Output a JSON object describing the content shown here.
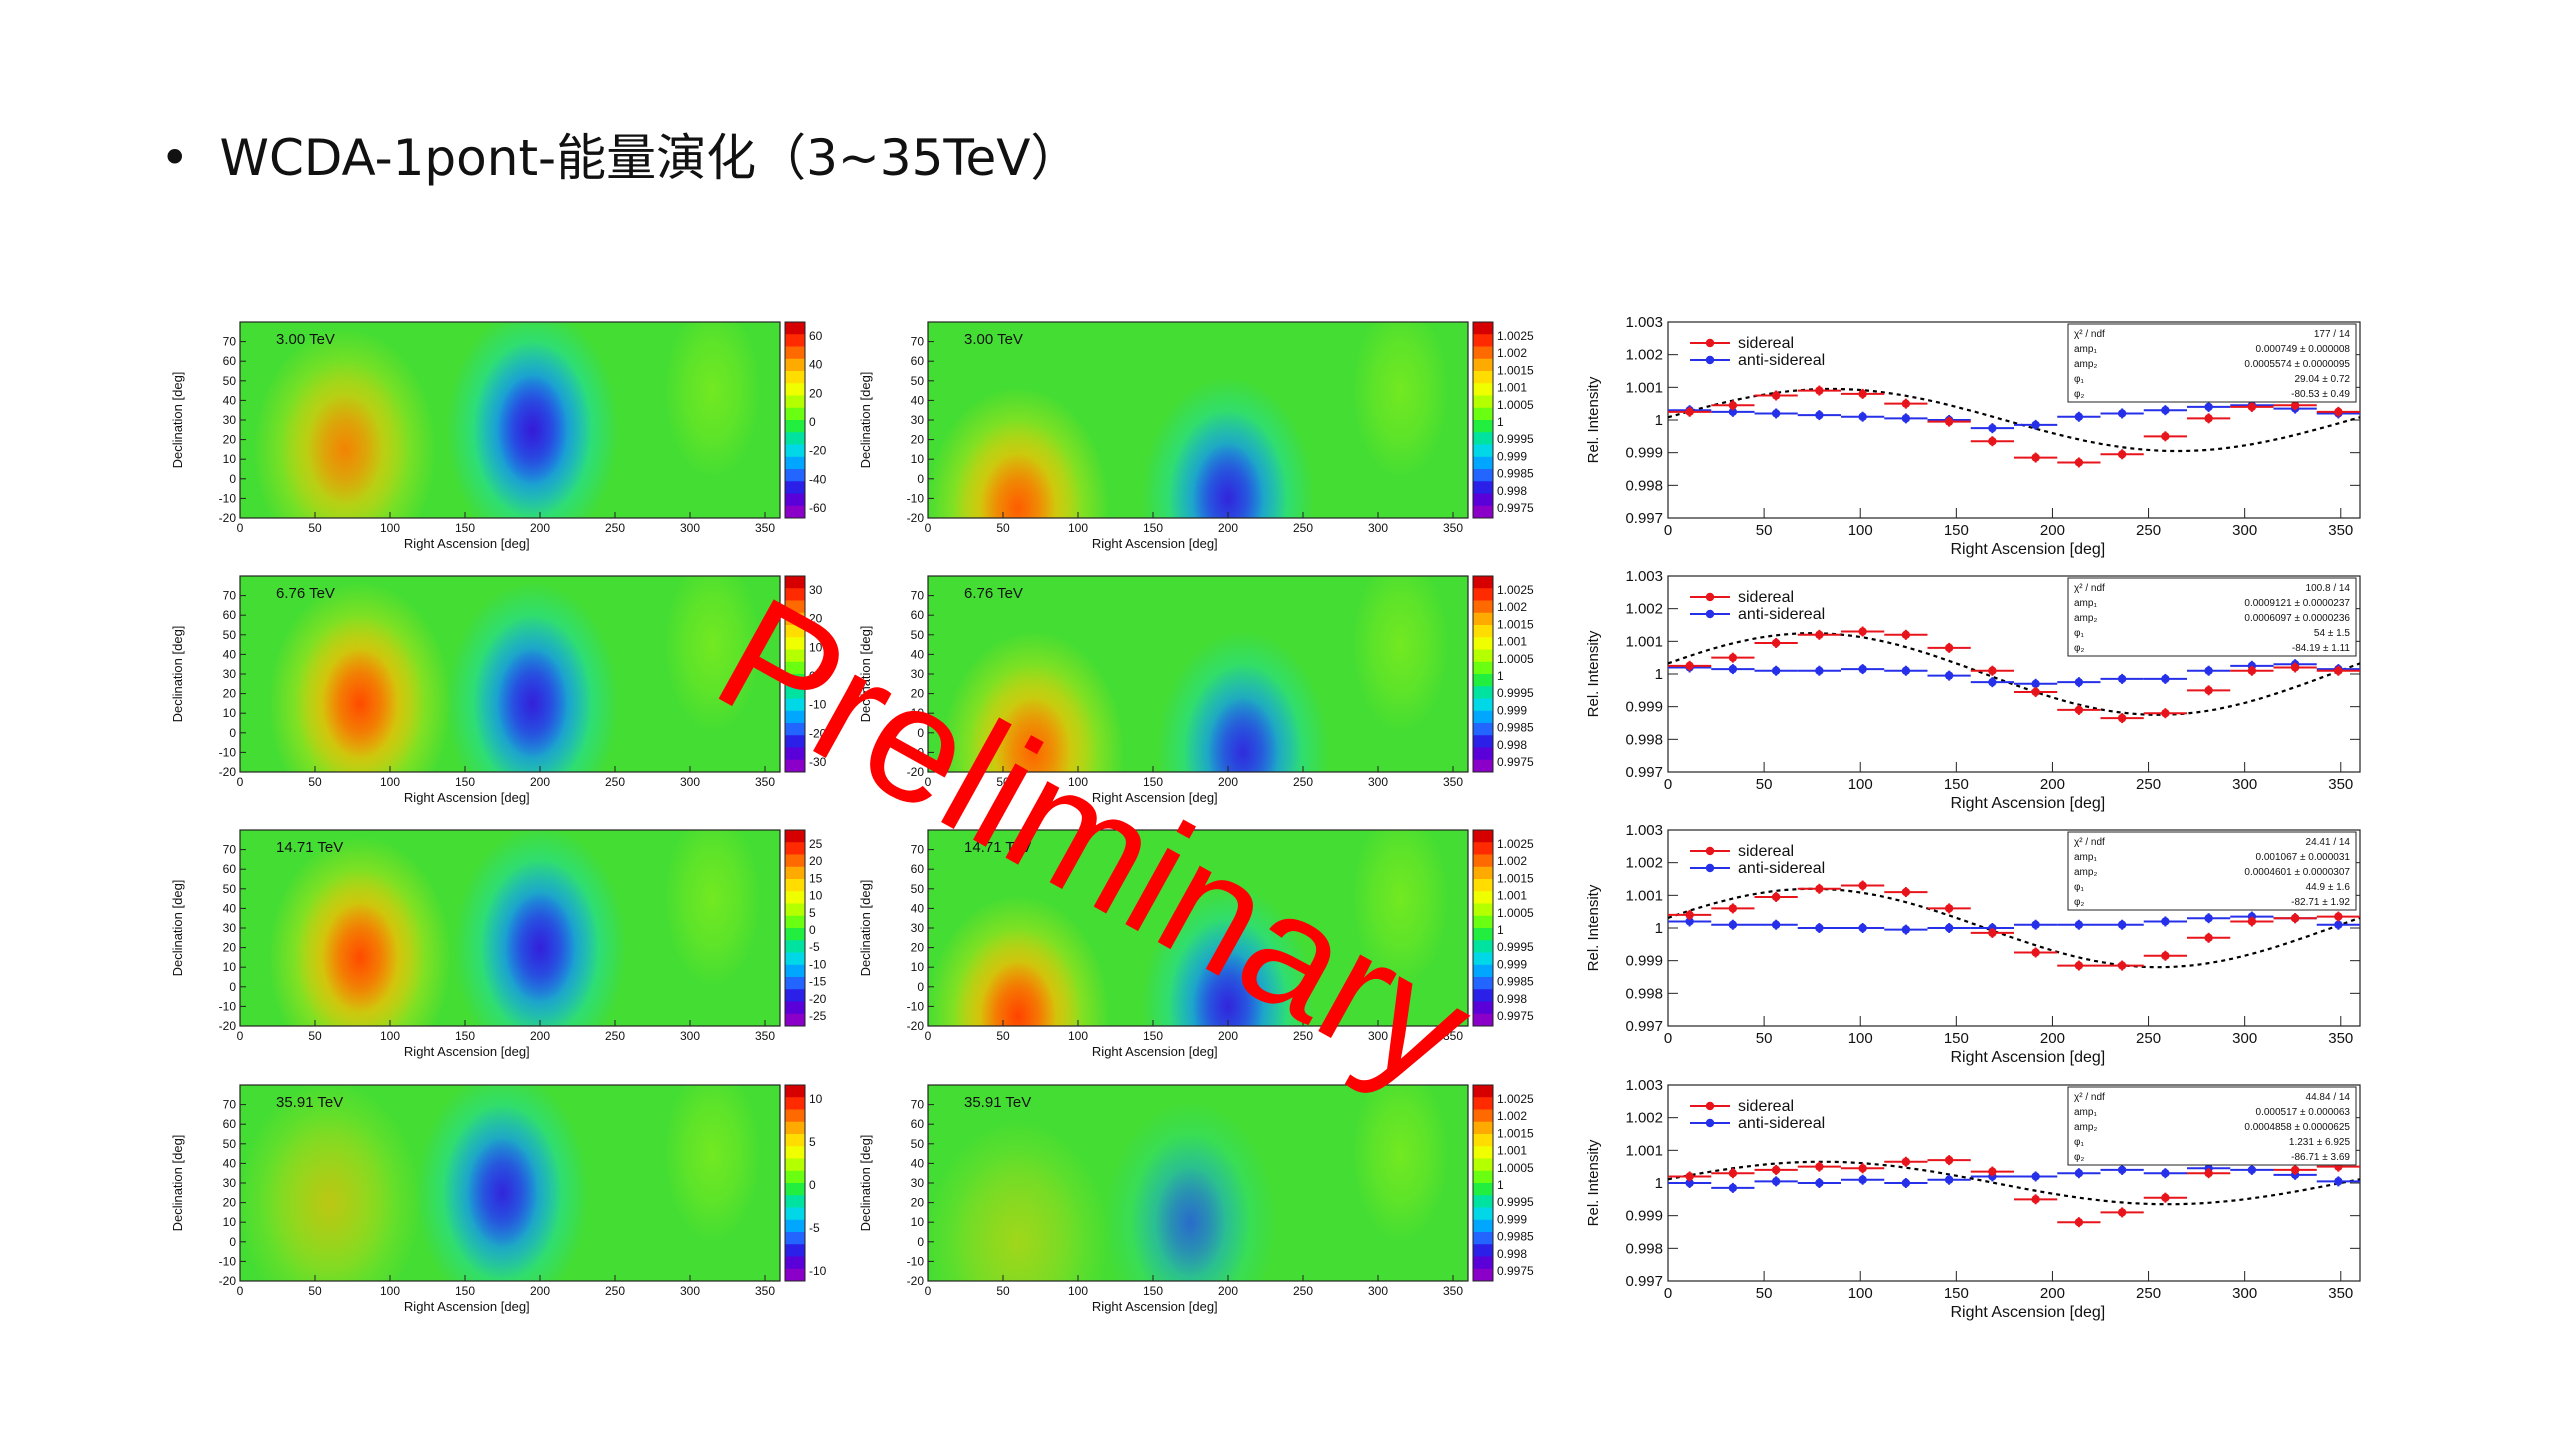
{
  "slide": {
    "bullet": "•",
    "title": "WCDA-1pont-能量演化（3~35TeV）"
  },
  "watermark": "Preliminary",
  "chart_data": {
    "type": "heatmap",
    "rows": [
      {
        "energy_label": "3.00 TeV",
        "rel_map": {
          "z_ticks": [
            "60",
            "40",
            "20",
            "0",
            "-20",
            "-40",
            "-60"
          ],
          "hot_strength": 0.55,
          "cold_strength": 1.0,
          "hot_ra": 70,
          "hot_dec": 15,
          "cold_ra": 195,
          "cold_dec": 25
        },
        "abs_map": {
          "z_ticks": [
            "1.0025",
            "1.002",
            "1.0015",
            "1.001",
            "1.0005",
            "1",
            "0.9995",
            "0.999",
            "0.9985",
            "0.998",
            "0.9975"
          ],
          "hot_strength": 0.75,
          "cold_strength": 0.9,
          "hot_ra": 60,
          "hot_dec": -15,
          "cold_ra": 200,
          "cold_dec": -10
        },
        "profile": {
          "stats": [
            [
              "χ² / ndf",
              "177 / 14"
            ],
            [
              "amp₁",
              "0.000749 ± 0.000008"
            ],
            [
              "amp₂",
              "0.0005574 ± 0.0000095"
            ],
            [
              "φ₁",
              "29.04 ± 0.72"
            ],
            [
              "φ₂",
              "-80.53 ± 0.49"
            ]
          ],
          "sidereal": [
            1.00025,
            1.00045,
            1.00075,
            1.0009,
            1.0008,
            1.0005,
            0.99995,
            0.99935,
            0.99885,
            0.9987,
            0.99895,
            0.9995,
            1.00005,
            1.0004,
            1.00045,
            1.00025
          ],
          "anti": [
            1.0003,
            1.00025,
            1.0002,
            1.00015,
            1.0001,
            1.00005,
            1.0,
            0.99975,
            0.99985,
            1.0001,
            1.0002,
            1.0003,
            1.0004,
            1.00045,
            1.00035,
            1.0002
          ],
          "fit_amp": 0.00095,
          "fit_phase": 85
        }
      },
      {
        "energy_label": "6.76 TeV",
        "rel_map": {
          "z_ticks": [
            "30",
            "20",
            "10",
            "0",
            "-10",
            "-20",
            "-30"
          ],
          "hot_strength": 0.85,
          "cold_strength": 0.95,
          "hot_ra": 80,
          "hot_dec": 15,
          "cold_ra": 195,
          "cold_dec": 15
        },
        "abs_map": {
          "z_ticks": [
            "1.0025",
            "1.002",
            "1.0015",
            "1.001",
            "1.0005",
            "1",
            "0.9995",
            "0.999",
            "0.9985",
            "0.998",
            "0.9975"
          ],
          "hot_strength": 0.7,
          "cold_strength": 0.85,
          "hot_ra": 70,
          "hot_dec": -10,
          "cold_ra": 210,
          "cold_dec": -10
        },
        "profile": {
          "stats": [
            [
              "χ² / ndf",
              "100.8 / 14"
            ],
            [
              "amp₁",
              "0.0009121 ± 0.0000237"
            ],
            [
              "amp₂",
              "0.0006097 ± 0.0000236"
            ],
            [
              "φ₁",
              "54 ± 1.5"
            ],
            [
              "φ₂",
              "-84.19 ± 1.11"
            ]
          ],
          "sidereal": [
            1.00025,
            1.0005,
            1.00095,
            1.0012,
            1.0013,
            1.0012,
            1.0008,
            1.0001,
            0.99945,
            0.9989,
            0.99865,
            0.9988,
            0.9995,
            1.0001,
            1.0002,
            1.0001
          ],
          "anti": [
            1.0002,
            1.00015,
            1.0001,
            1.0001,
            1.00015,
            1.0001,
            0.99995,
            0.99975,
            0.9997,
            0.99975,
            0.99985,
            0.99985,
            1.0001,
            1.00025,
            1.0003,
            1.00015
          ],
          "fit_amp": 0.00125,
          "fit_phase": 75
        }
      },
      {
        "energy_label": "14.71 TeV",
        "rel_map": {
          "z_ticks": [
            "25",
            "20",
            "15",
            "10",
            "5",
            "0",
            "-5",
            "-10",
            "-15",
            "-20",
            "-25"
          ],
          "hot_strength": 0.85,
          "cold_strength": 0.95,
          "hot_ra": 80,
          "hot_dec": 15,
          "cold_ra": 200,
          "cold_dec": 20
        },
        "abs_map": {
          "z_ticks": [
            "1.0025",
            "1.002",
            "1.0015",
            "1.001",
            "1.0005",
            "1",
            "0.9995",
            "0.999",
            "0.9985",
            "0.998",
            "0.9975"
          ],
          "hot_strength": 0.9,
          "cold_strength": 0.9,
          "hot_ra": 60,
          "hot_dec": -15,
          "cold_ra": 200,
          "cold_dec": -10
        },
        "profile": {
          "stats": [
            [
              "χ² / ndf",
              "24.41 / 14"
            ],
            [
              "amp₁",
              "0.001067 ± 0.000031"
            ],
            [
              "amp₂",
              "0.0004601 ± 0.0000307"
            ],
            [
              "φ₁",
              "44.9 ± 1.6"
            ],
            [
              "φ₂",
              "-82.71 ± 1.92"
            ]
          ],
          "sidereal": [
            1.0004,
            1.0006,
            1.00095,
            1.0012,
            1.0013,
            1.0011,
            1.0006,
            0.99985,
            0.99925,
            0.99885,
            0.99885,
            0.99915,
            0.9997,
            1.0002,
            1.0003,
            1.00035
          ],
          "anti": [
            1.0002,
            1.0001,
            1.0001,
            1.0,
            1.0,
            0.99995,
            1.0,
            1.0,
            1.0001,
            1.0001,
            1.0001,
            1.0002,
            1.0003,
            1.00035,
            1.0003,
            1.0001
          ],
          "fit_amp": 0.0012,
          "fit_phase": 75
        }
      },
      {
        "energy_label": "35.91 TeV",
        "rel_map": {
          "z_ticks": [
            "10",
            "5",
            "0",
            "-5",
            "-10"
          ],
          "hot_strength": 0.25,
          "cold_strength": 0.9,
          "hot_ra": 60,
          "hot_dec": 20,
          "cold_ra": 175,
          "cold_dec": 25
        },
        "abs_map": {
          "z_ticks": [
            "1.0025",
            "1.002",
            "1.0015",
            "1.001",
            "1.0005",
            "1",
            "0.9995",
            "0.999",
            "0.9985",
            "0.998",
            "0.9975"
          ],
          "hot_strength": 0.15,
          "cold_strength": 0.5,
          "hot_ra": 60,
          "hot_dec": 0,
          "cold_ra": 175,
          "cold_dec": 10
        },
        "profile": {
          "stats": [
            [
              "χ² / ndf",
              "44.84 / 14"
            ],
            [
              "amp₁",
              "0.000517 ± 0.000063"
            ],
            [
              "amp₂",
              "0.0004858 ± 0.0000625"
            ],
            [
              "φ₁",
              "1.231 ± 6.925"
            ],
            [
              "φ₂",
              "-86.71 ± 3.69"
            ]
          ],
          "sidereal": [
            1.0002,
            1.0003,
            1.0004,
            1.0005,
            1.00045,
            1.00065,
            1.0007,
            1.00035,
            0.9995,
            0.9988,
            0.9991,
            0.99955,
            1.0003,
            1.0007,
            1.0004,
            1.0005
          ],
          "anti": [
            1.0,
            0.99985,
            1.00005,
            1.0,
            1.0001,
            1.0,
            1.0001,
            1.0002,
            1.0002,
            1.0003,
            1.0004,
            1.0003,
            1.00045,
            1.0004,
            1.00025,
            1.00005
          ],
          "fit_amp": 0.00065,
          "fit_phase": 80
        }
      }
    ],
    "map_axes": {
      "xlabel": "Right Ascension [deg]",
      "ylabel": "Declination [deg]",
      "x_ticks": [
        0,
        50,
        100,
        150,
        200,
        250,
        300,
        350
      ],
      "y_ticks": [
        -20,
        -10,
        0,
        10,
        20,
        30,
        40,
        50,
        60,
        70
      ],
      "xlim": [
        0,
        360
      ],
      "ylim": [
        -20,
        80
      ]
    },
    "profile_axes": {
      "xlabel": "Right Ascension [deg]",
      "ylabel": "Rel. Intensity",
      "x_ticks": [
        0,
        50,
        100,
        150,
        200,
        250,
        300,
        350
      ],
      "y_ticks": [
        "1.003",
        "1.002",
        "1.001",
        "1",
        "0.999",
        "0.998",
        "0.997"
      ],
      "xlim": [
        0,
        360
      ],
      "ylim": [
        0.997,
        1.003
      ]
    },
    "legend": {
      "sidereal": "sidereal",
      "anti": "anti-sidereal"
    },
    "colors": {
      "sidereal": "#e8141b",
      "anti": "#2530e8",
      "fit": "#000000"
    }
  }
}
